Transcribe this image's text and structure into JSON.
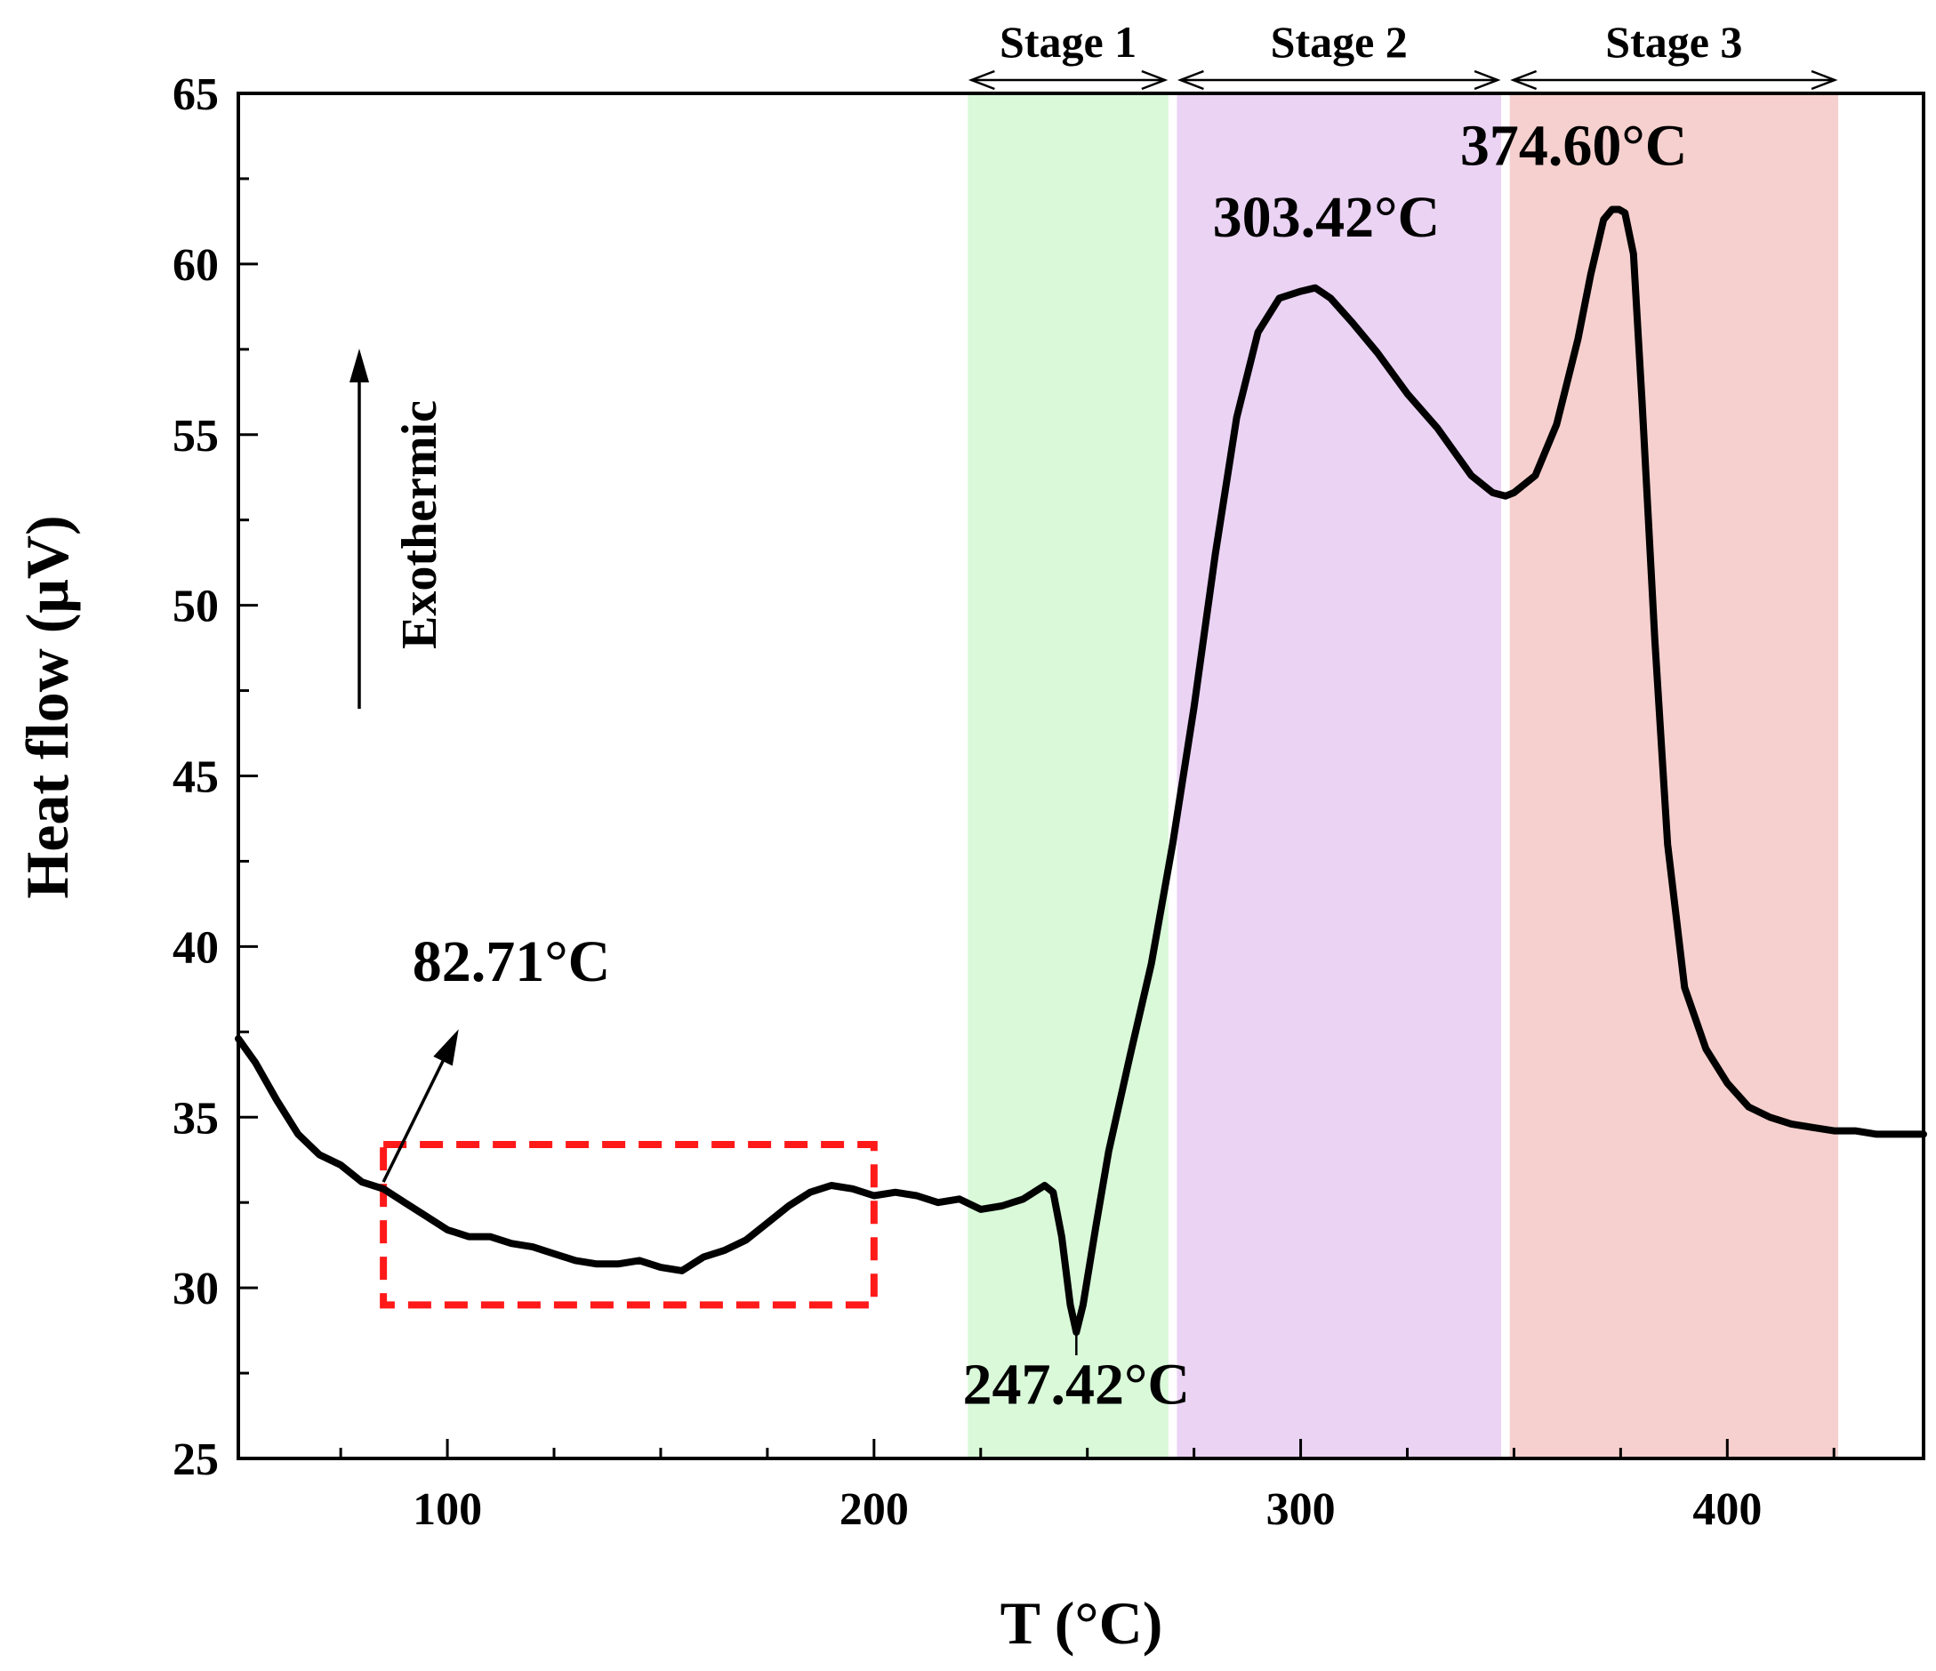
{
  "chart_data": {
    "type": "line",
    "title": "",
    "xlabel": "T (°C)",
    "ylabel": "Heat flow (μV)",
    "xlim": [
      51,
      446
    ],
    "ylim": [
      25,
      65
    ],
    "x_ticks": [
      100,
      200,
      300,
      400
    ],
    "y_ticks": [
      25,
      30,
      35,
      40,
      45,
      50,
      55,
      60,
      65
    ],
    "grid": false,
    "series": [
      {
        "name": "Heat flow",
        "color": "#000000",
        "x": [
          51,
          55,
          60,
          65,
          70,
          75,
          80,
          85,
          90,
          95,
          100,
          105,
          110,
          115,
          120,
          125,
          130,
          135,
          140,
          145,
          150,
          155,
          160,
          165,
          170,
          175,
          180,
          185,
          190,
          195,
          200,
          205,
          210,
          215,
          220,
          225,
          230,
          235,
          240,
          242,
          244,
          246,
          247.42,
          249,
          252,
          255,
          260,
          265,
          270,
          275,
          280,
          285,
          290,
          295,
          300,
          303.42,
          307,
          312,
          318,
          325,
          332,
          340,
          345,
          348,
          350,
          355,
          360,
          365,
          368,
          371,
          373,
          374.6,
          376,
          378,
          380,
          383,
          386,
          390,
          395,
          400,
          405,
          410,
          415,
          420,
          425,
          430,
          435,
          440,
          446
        ],
        "y": [
          37.3,
          36.6,
          35.5,
          34.5,
          33.9,
          33.6,
          33.1,
          32.9,
          32.5,
          32.1,
          31.7,
          31.5,
          31.5,
          31.3,
          31.2,
          31.0,
          30.8,
          30.7,
          30.7,
          30.8,
          30.6,
          30.5,
          30.9,
          31.1,
          31.4,
          31.9,
          32.4,
          32.8,
          33.0,
          32.9,
          32.7,
          32.8,
          32.7,
          32.5,
          32.6,
          32.3,
          32.4,
          32.6,
          33.0,
          32.8,
          31.5,
          29.5,
          28.7,
          29.5,
          31.8,
          34.0,
          36.8,
          39.5,
          43.0,
          47.0,
          51.5,
          55.5,
          58.0,
          59.0,
          59.2,
          59.3,
          59.0,
          58.3,
          57.4,
          56.2,
          55.2,
          53.8,
          53.3,
          53.2,
          53.3,
          53.8,
          55.3,
          57.8,
          59.7,
          61.3,
          61.6,
          61.6,
          61.5,
          60.3,
          56.0,
          49.0,
          43.0,
          38.8,
          37.0,
          36.0,
          35.3,
          35.0,
          34.8,
          34.7,
          34.6,
          34.6,
          34.5,
          34.5,
          34.5
        ]
      }
    ],
    "stages": [
      {
        "label": "Stage 1",
        "x_range": [
          222,
          269
        ],
        "color": "#d9f9d9"
      },
      {
        "label": "Stage 2",
        "x_range": [
          271,
          347
        ],
        "color": "#ebd3f4"
      },
      {
        "label": "Stage 3",
        "x_range": [
          349,
          426
        ],
        "color": "#f6d0ce"
      }
    ],
    "annotations": [
      {
        "text": "82.71°C",
        "point": [
          85,
          33.1
        ],
        "label_at": [
          115,
          39
        ]
      },
      {
        "text": "247.42°C",
        "point": [
          247.42,
          28.7
        ],
        "label_at": [
          247.42,
          26.6
        ]
      },
      {
        "text": "303.42°C",
        "point": [
          303.42,
          59.3
        ],
        "label_at": [
          306,
          60.8
        ]
      },
      {
        "text": "374.60°C",
        "point": [
          374.6,
          61.6
        ],
        "label_at": [
          364,
          62.9
        ]
      }
    ],
    "highlight_box": {
      "x_range": [
        85,
        200
      ],
      "y_range": [
        29.5,
        34.2
      ],
      "color": "#ff1a1a"
    },
    "direction_note": {
      "text": "Exothermic",
      "arrow": "up"
    }
  }
}
